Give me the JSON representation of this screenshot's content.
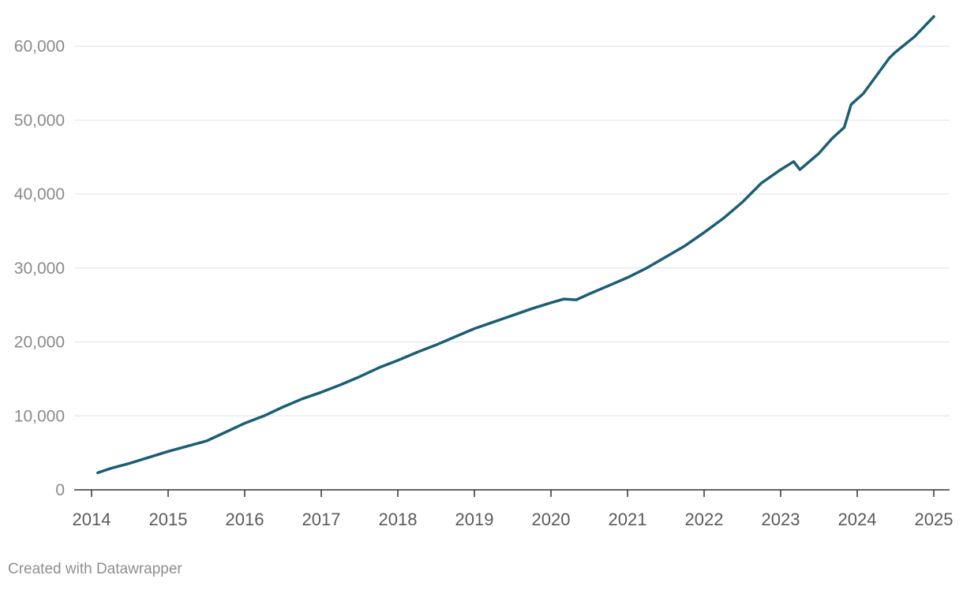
{
  "chart_data": {
    "type": "line",
    "title": "",
    "xlabel": "",
    "ylabel": "",
    "xlim": [
      2014.0,
      2025.0
    ],
    "ylim": [
      0,
      65000
    ],
    "y_ticks": [
      0,
      10000,
      20000,
      30000,
      40000,
      50000,
      60000
    ],
    "y_tick_labels": [
      "0",
      "10,000",
      "20,000",
      "30,000",
      "40,000",
      "50,000",
      "60,000"
    ],
    "x_ticks": [
      2014,
      2015,
      2016,
      2017,
      2018,
      2019,
      2020,
      2021,
      2022,
      2023,
      2024,
      2025
    ],
    "x_tick_labels": [
      "2014",
      "2015",
      "2016",
      "2017",
      "2018",
      "2019",
      "2020",
      "2021",
      "2022",
      "2023",
      "2024",
      "2025"
    ],
    "grid": "horizontal",
    "line_color": "#1b5e74",
    "series": [
      {
        "x": [
          2014.08,
          2014.25,
          2014.5,
          2014.75,
          2015.0,
          2015.25,
          2015.5,
          2015.75,
          2016.0,
          2016.25,
          2016.5,
          2016.75,
          2017.0,
          2017.25,
          2017.5,
          2017.75,
          2018.0,
          2018.25,
          2018.5,
          2018.75,
          2019.0,
          2019.25,
          2019.5,
          2019.75,
          2020.0,
          2020.17,
          2020.33,
          2020.5,
          2020.75,
          2021.0,
          2021.25,
          2021.5,
          2021.75,
          2022.0,
          2022.25,
          2022.5,
          2022.75,
          2023.0,
          2023.17,
          2023.25,
          2023.5,
          2023.67,
          2023.83,
          2023.92,
          2024.08,
          2024.25,
          2024.42,
          2024.5,
          2024.75,
          2025.0
        ],
        "y": [
          2300,
          2900,
          3600,
          4400,
          5200,
          5900,
          6600,
          7800,
          9000,
          10000,
          11200,
          12300,
          13200,
          14200,
          15300,
          16500,
          17500,
          18600,
          19600,
          20700,
          21800,
          22700,
          23600,
          24500,
          25300,
          25800,
          25700,
          26500,
          27600,
          28700,
          30000,
          31500,
          33000,
          34800,
          36700,
          38900,
          41500,
          43300,
          44400,
          43300,
          45500,
          47500,
          49000,
          52100,
          53600,
          56000,
          58400,
          59200,
          61300,
          64000
        ]
      }
    ]
  },
  "footer": {
    "credit": "Created with Datawrapper"
  }
}
